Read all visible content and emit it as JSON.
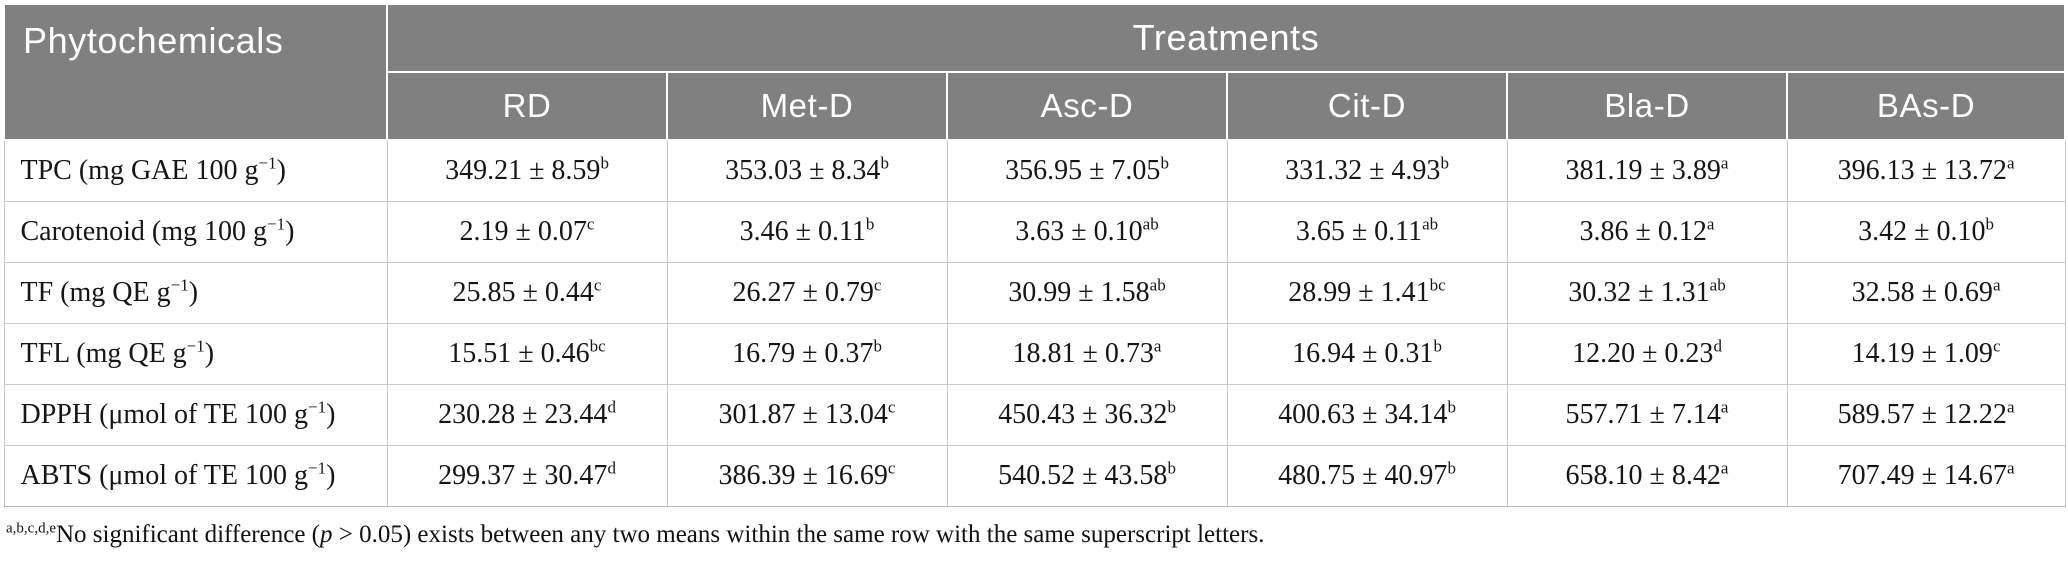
{
  "table": {
    "colors": {
      "header_bg": "#7f807f",
      "header_text": "#ffffff",
      "body_border": "#c9c9c9",
      "body_text": "#161616"
    },
    "header": {
      "phytochemicals_label": "Phytochemicals",
      "treatments_label": "Treatments",
      "treatment_columns": [
        "RD",
        "Met-D",
        "Asc-D",
        "Cit-D",
        "Bla-D",
        "BAs-D"
      ]
    },
    "rows": [
      {
        "label": {
          "pre": "TPC (mg GAE 100 g",
          "sup": "−1",
          "post": ")"
        },
        "cells": [
          {
            "value": "349.21 ± 8.59",
            "sup": "b"
          },
          {
            "value": "353.03 ± 8.34",
            "sup": "b"
          },
          {
            "value": "356.95 ± 7.05",
            "sup": "b"
          },
          {
            "value": "331.32 ± 4.93",
            "sup": "b"
          },
          {
            "value": "381.19 ± 3.89",
            "sup": "a"
          },
          {
            "value": "396.13 ± 13.72",
            "sup": "a"
          }
        ]
      },
      {
        "label": {
          "pre": "Carotenoid (mg 100 g",
          "sup": "−1",
          "post": ")"
        },
        "cells": [
          {
            "value": "2.19 ± 0.07",
            "sup": "c"
          },
          {
            "value": "3.46 ± 0.11",
            "sup": "b"
          },
          {
            "value": "3.63 ± 0.10",
            "sup": "ab"
          },
          {
            "value": "3.65 ± 0.11",
            "sup": "ab"
          },
          {
            "value": "3.86 ± 0.12",
            "sup": "a"
          },
          {
            "value": "3.42 ± 0.10",
            "sup": "b"
          }
        ]
      },
      {
        "label": {
          "pre": "TF (mg QE g",
          "sup": "−1",
          "post": ")"
        },
        "cells": [
          {
            "value": "25.85 ± 0.44",
            "sup": "c"
          },
          {
            "value": "26.27 ± 0.79",
            "sup": "c"
          },
          {
            "value": "30.99 ± 1.58",
            "sup": "ab"
          },
          {
            "value": "28.99 ± 1.41",
            "sup": "bc"
          },
          {
            "value": "30.32 ± 1.31",
            "sup": "ab"
          },
          {
            "value": "32.58 ± 0.69",
            "sup": "a"
          }
        ]
      },
      {
        "label": {
          "pre": "TFL (mg QE g",
          "sup": "−1",
          "post": ")"
        },
        "cells": [
          {
            "value": "15.51 ± 0.46",
            "sup": "bc"
          },
          {
            "value": "16.79 ± 0.37",
            "sup": "b"
          },
          {
            "value": "18.81 ± 0.73",
            "sup": "a"
          },
          {
            "value": "16.94 ± 0.31",
            "sup": "b"
          },
          {
            "value": "12.20 ± 0.23",
            "sup": "d"
          },
          {
            "value": "14.19 ± 1.09",
            "sup": "c"
          }
        ]
      },
      {
        "label": {
          "pre": "DPPH (μmol of TE 100 g",
          "sup": "−1",
          "post": ")"
        },
        "cells": [
          {
            "value": "230.28 ± 23.44",
            "sup": "d"
          },
          {
            "value": "301.87 ± 13.04",
            "sup": "c"
          },
          {
            "value": "450.43 ± 36.32",
            "sup": "b"
          },
          {
            "value": "400.63 ± 34.14",
            "sup": "b"
          },
          {
            "value": "557.71 ± 7.14",
            "sup": "a"
          },
          {
            "value": "589.57 ± 12.22",
            "sup": "a"
          }
        ]
      },
      {
        "label": {
          "pre": "ABTS (μmol of TE 100 g",
          "sup": "−1",
          "post": ")"
        },
        "cells": [
          {
            "value": "299.37 ± 30.47",
            "sup": "d"
          },
          {
            "value": "386.39 ± 16.69",
            "sup": "c"
          },
          {
            "value": "540.52 ± 43.58",
            "sup": "b"
          },
          {
            "value": "480.75 ± 40.97",
            "sup": "b"
          },
          {
            "value": "658.10 ± 8.42",
            "sup": "a"
          },
          {
            "value": "707.49 ± 14.67",
            "sup": "a"
          }
        ]
      }
    ]
  },
  "footnote": {
    "sup": "a,b,c,d,e",
    "pre": "No significant difference (",
    "italic": "p",
    "post": " > 0.05) exists between any two means within the same row with the same superscript letters."
  }
}
